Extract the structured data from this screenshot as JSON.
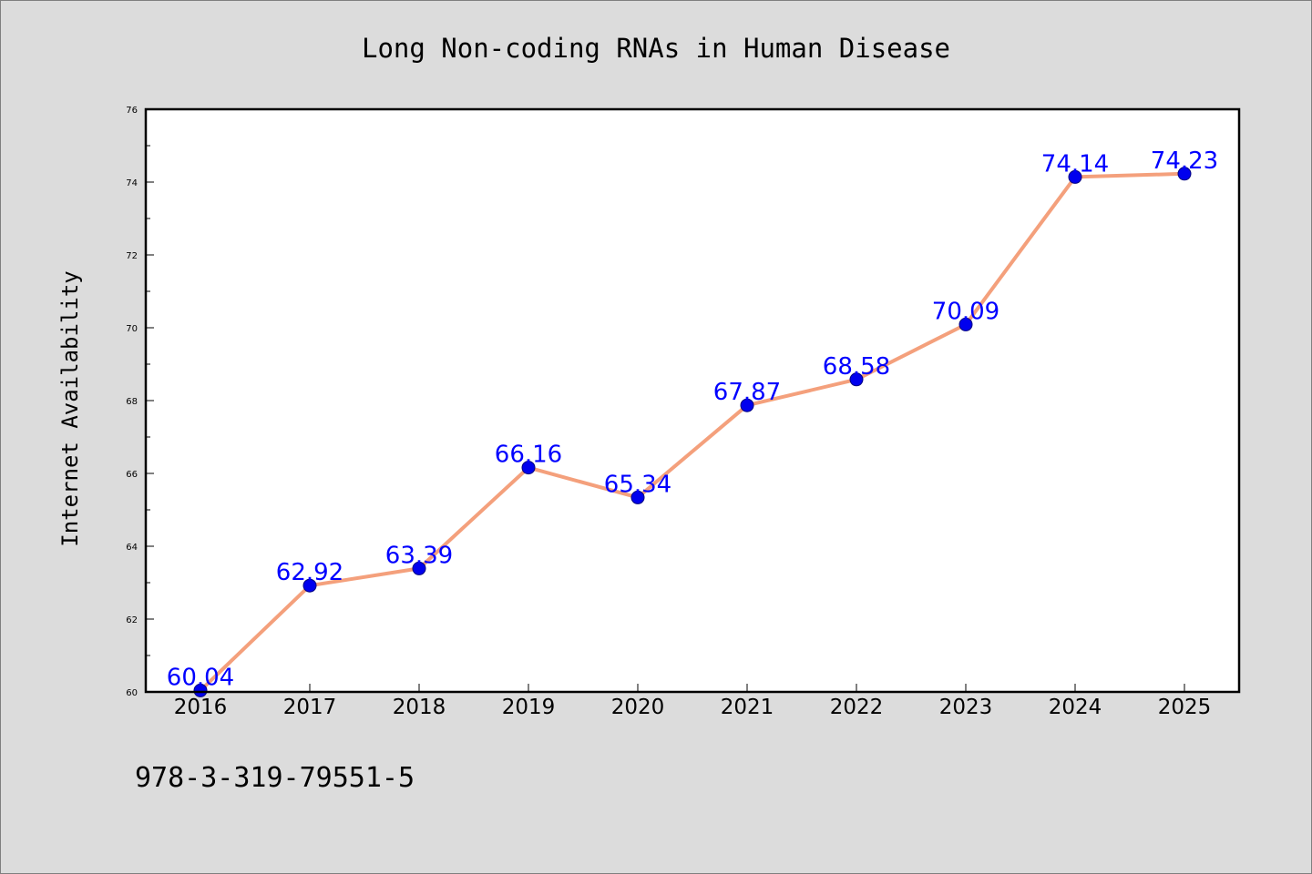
{
  "colors": {
    "background": "#dcdcdc",
    "plot_background": "#ffffff",
    "line": "#f4a07c",
    "marker_fill": "#0000ee",
    "marker_edge": "#000080",
    "data_label": "#0000ff"
  },
  "footer_text": "978-3-319-79551-5",
  "chart_data": {
    "type": "line",
    "title": "Long Non-coding RNAs in Human Disease",
    "xlabel": "",
    "ylabel": "Internet Availability",
    "categories": [
      "2016",
      "2017",
      "2018",
      "2019",
      "2020",
      "2021",
      "2022",
      "2023",
      "2024",
      "2025"
    ],
    "series": [
      {
        "values": [
          60.04,
          62.92,
          63.39,
          66.16,
          65.34,
          67.87,
          68.58,
          70.09,
          74.14,
          74.23
        ],
        "labels": [
          "60.04",
          "62.92",
          "63.39",
          "66.16",
          "65.34",
          "67.87",
          "68.58",
          "70.09",
          "74.14",
          "74.23"
        ]
      }
    ],
    "ylim": [
      60,
      76
    ],
    "yticks": [
      60,
      62,
      64,
      66,
      68,
      70,
      72,
      74,
      76
    ],
    "ytick_labels": [
      "60",
      "62",
      "64",
      "66",
      "68",
      "70",
      "72",
      "74",
      "76"
    ],
    "grid": false,
    "legend": "none"
  }
}
